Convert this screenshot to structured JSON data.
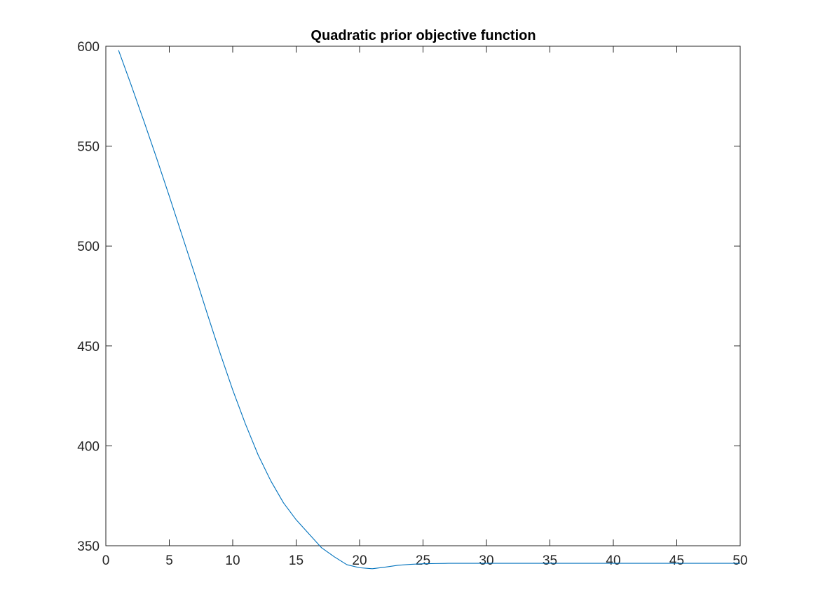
{
  "chart_data": {
    "type": "line",
    "title": "Quadratic prior objective function",
    "xlabel": "",
    "ylabel": "",
    "xlim": [
      0,
      50
    ],
    "ylim": [
      350,
      600
    ],
    "xticks": [
      0,
      5,
      10,
      15,
      20,
      25,
      30,
      35,
      40,
      45,
      50
    ],
    "yticks": [
      350,
      400,
      450,
      500,
      550,
      600
    ],
    "xtick_labels": [
      "0",
      "5",
      "10",
      "15",
      "20",
      "25",
      "30",
      "35",
      "40",
      "45",
      "50"
    ],
    "ytick_labels": [
      "350",
      "400",
      "450",
      "500",
      "550",
      "600"
    ],
    "grid": false,
    "box": true,
    "series": [
      {
        "color": "#0072BD",
        "x": [
          1,
          2,
          3,
          4,
          5,
          6,
          7,
          8,
          9,
          10,
          11,
          12,
          13,
          14,
          15,
          16,
          17,
          18,
          19,
          20,
          21,
          22,
          23,
          24,
          25,
          26,
          27,
          28,
          29,
          30,
          31,
          32,
          33,
          34,
          35,
          36,
          37,
          38,
          39,
          40,
          41,
          42,
          43,
          44,
          45,
          46,
          47,
          48,
          49,
          50
        ],
        "y": [
          598,
          580.5,
          562.5,
          544,
          525,
          505.5,
          486,
          466,
          446.5,
          428,
          411,
          395.5,
          382.5,
          371.5,
          363,
          356,
          349,
          344.5,
          340.5,
          339,
          338.5,
          339.3,
          340.2,
          340.7,
          341,
          341.1,
          341.2,
          341.2,
          341.2,
          341.2,
          341.2,
          341.2,
          341.2,
          341.2,
          341.2,
          341.2,
          341.2,
          341.2,
          341.2,
          341.2,
          341.2,
          341.2,
          341.2,
          341.2,
          341.2,
          341.2,
          341.2,
          341.2,
          341.2,
          341.2
        ]
      }
    ]
  }
}
